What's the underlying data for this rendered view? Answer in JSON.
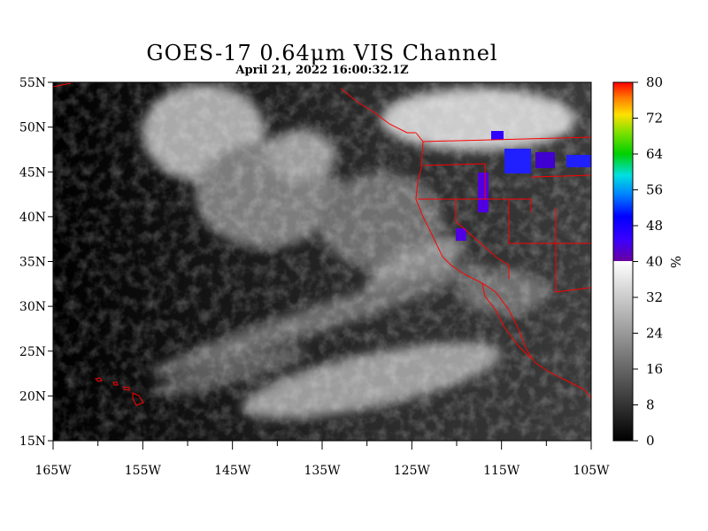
{
  "header": {
    "title": "GOES-17  0.64μm VIS Channel",
    "subtitle": "April 21,  2022 16:00:32.1Z"
  },
  "map": {
    "lon_range": [
      -165,
      -105
    ],
    "lat_range": [
      15,
      55
    ],
    "lat_labels": [
      "55N",
      "50N",
      "45N",
      "40N",
      "35N",
      "30N",
      "25N",
      "20N",
      "15N"
    ],
    "lat_values": [
      55,
      50,
      45,
      40,
      35,
      30,
      25,
      20,
      15
    ],
    "lon_labels": [
      "165W",
      "155W",
      "145W",
      "135W",
      "125W",
      "115W",
      "105W"
    ],
    "lon_values": [
      -165,
      -155,
      -145,
      -135,
      -125,
      -115,
      -105
    ],
    "minor_lon_values": [
      -160,
      -150,
      -140,
      -130,
      -120,
      -110
    ],
    "boundary_color": "#ff0000"
  },
  "colorbar": {
    "labels": [
      "80",
      "72",
      "64",
      "56",
      "48",
      "40",
      "32",
      "24",
      "16",
      "8",
      "0"
    ],
    "values": [
      80,
      72,
      64,
      56,
      48,
      40,
      32,
      24,
      16,
      8,
      0
    ],
    "range": [
      0,
      80
    ],
    "unit": "%",
    "grayscale_range": [
      0,
      40
    ],
    "color_range": [
      40,
      80
    ]
  }
}
